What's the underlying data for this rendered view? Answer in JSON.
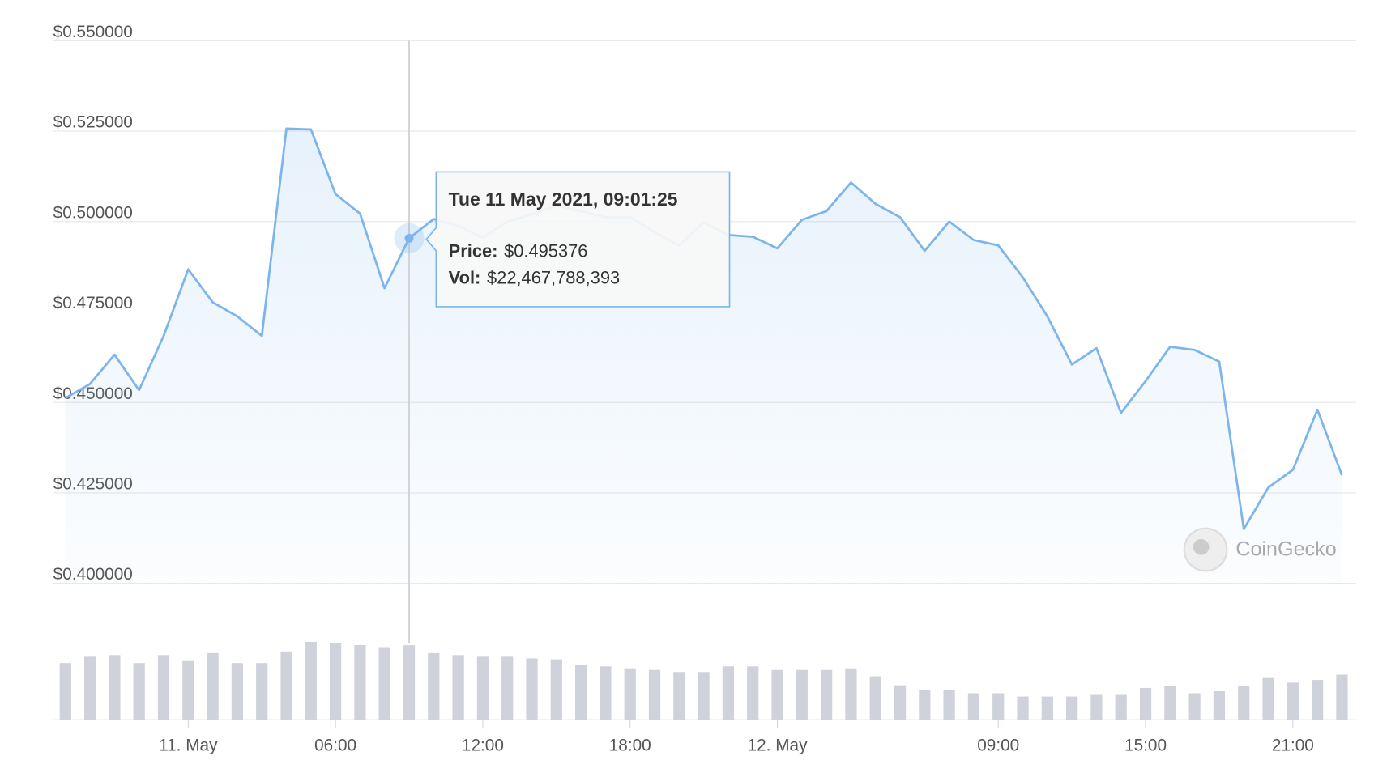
{
  "chart_data": {
    "type": "line",
    "x": [
      "2021-05-10T19:00",
      "2021-05-10T20:00",
      "2021-05-10T21:00",
      "2021-05-10T22:00",
      "2021-05-10T23:00",
      "2021-05-11T00:00",
      "2021-05-11T01:00",
      "2021-05-11T02:00",
      "2021-05-11T03:00",
      "2021-05-11T04:00",
      "2021-05-11T05:00",
      "2021-05-11T06:00",
      "2021-05-11T07:00",
      "2021-05-11T08:00",
      "2021-05-11T09:00",
      "2021-05-11T10:00",
      "2021-05-11T11:00",
      "2021-05-11T12:00",
      "2021-05-11T13:00",
      "2021-05-11T14:00",
      "2021-05-11T15:00",
      "2021-05-11T16:00",
      "2021-05-11T17:00",
      "2021-05-11T18:00",
      "2021-05-11T19:00",
      "2021-05-11T20:00",
      "2021-05-11T21:00",
      "2021-05-11T22:00",
      "2021-05-11T23:00",
      "2021-05-12T00:00",
      "2021-05-12T01:00",
      "2021-05-12T02:00",
      "2021-05-12T03:00",
      "2021-05-12T04:00",
      "2021-05-12T05:00",
      "2021-05-12T06:00",
      "2021-05-12T07:00",
      "2021-05-12T08:00",
      "2021-05-12T09:00",
      "2021-05-12T10:00",
      "2021-05-12T11:00",
      "2021-05-12T12:00",
      "2021-05-12T13:00",
      "2021-05-12T14:00",
      "2021-05-12T15:00",
      "2021-05-12T16:00",
      "2021-05-12T17:00",
      "2021-05-12T18:00",
      "2021-05-12T19:00",
      "2021-05-12T20:00",
      "2021-05-12T21:00",
      "2021-05-12T22:00",
      "2021-05-12T23:00"
    ],
    "values": [
      0.4512,
      0.4551,
      0.4632,
      0.4534,
      0.4684,
      0.4868,
      0.4777,
      0.4738,
      0.4684,
      0.5257,
      0.5255,
      0.5076,
      0.5022,
      0.4816,
      0.4954,
      0.5007,
      0.4988,
      0.4956,
      0.5,
      0.502,
      0.5044,
      0.5029,
      0.5012,
      0.5012,
      0.4971,
      0.4934,
      0.4998,
      0.4963,
      0.4958,
      0.4926,
      0.5005,
      0.5029,
      0.5108,
      0.5049,
      0.5012,
      0.4919,
      0.5,
      0.4949,
      0.4934,
      0.4846,
      0.4738,
      0.4605,
      0.465,
      0.4471,
      0.4559,
      0.4654,
      0.4645,
      0.4613,
      0.415,
      0.4265,
      0.4314,
      0.448,
      0.4299
    ],
    "volumes": [
      17100000000,
      19000000000,
      19500000000,
      17100000000,
      19500000000,
      17700000000,
      20100000000,
      17100000000,
      17100000000,
      20600000000,
      23500000000,
      23000000000,
      22500000000,
      21900000000,
      22467788393,
      20100000000,
      19500000000,
      19000000000,
      19000000000,
      18500000000,
      18200000000,
      16600000000,
      16100000000,
      15500000000,
      15000000000,
      14400000000,
      14400000000,
      16100000000,
      16100000000,
      15000000000,
      15000000000,
      15000000000,
      15500000000,
      13100000000,
      10400000000,
      9100000000,
      9100000000,
      8000000000,
      8000000000,
      7000000000,
      7000000000,
      7000000000,
      7500000000,
      7500000000,
      9600000000,
      10200000000,
      8000000000,
      8600000000,
      10200000000,
      12600000000,
      11200000000,
      12000000000,
      13600000000
    ],
    "color": "#7cb5ec",
    "volume_color": "#cfd2da",
    "xlim": [
      "2021-05-10T18:30",
      "2021-05-12T23:35"
    ],
    "xticks": [
      {
        "value": "2021-05-11T00:00",
        "label": "11. May"
      },
      {
        "value": "2021-05-11T06:00",
        "label": "06:00"
      },
      {
        "value": "2021-05-11T12:00",
        "label": "12:00"
      },
      {
        "value": "2021-05-11T18:00",
        "label": "18:00"
      },
      {
        "value": "2021-05-12T00:00",
        "label": "12. May"
      },
      {
        "value": "2021-05-12T09:00",
        "label": "09:00"
      },
      {
        "value": "2021-05-12T15:00",
        "label": "15:00"
      },
      {
        "value": "2021-05-12T21:00",
        "label": "21:00"
      }
    ],
    "ylim": [
      0.4,
      0.55
    ],
    "yticks": [
      {
        "value": 0.4,
        "label": "$0.400000"
      },
      {
        "value": 0.425,
        "label": "$0.425000"
      },
      {
        "value": 0.45,
        "label": "$0.450000"
      },
      {
        "value": 0.475,
        "label": "$0.475000"
      },
      {
        "value": 0.5,
        "label": "$0.500000"
      },
      {
        "value": 0.525,
        "label": "$0.525000"
      },
      {
        "value": 0.55,
        "label": "$0.550000"
      }
    ],
    "grid": true,
    "watermark": "CoinGecko",
    "tooltip": {
      "index": 14,
      "title": "Tue 11 May 2021, 09:01:25",
      "items": [
        {
          "label": "Price:",
          "value": "$0.495376"
        },
        {
          "label": "Vol:",
          "value": "$22,467,788,393"
        }
      ]
    }
  }
}
